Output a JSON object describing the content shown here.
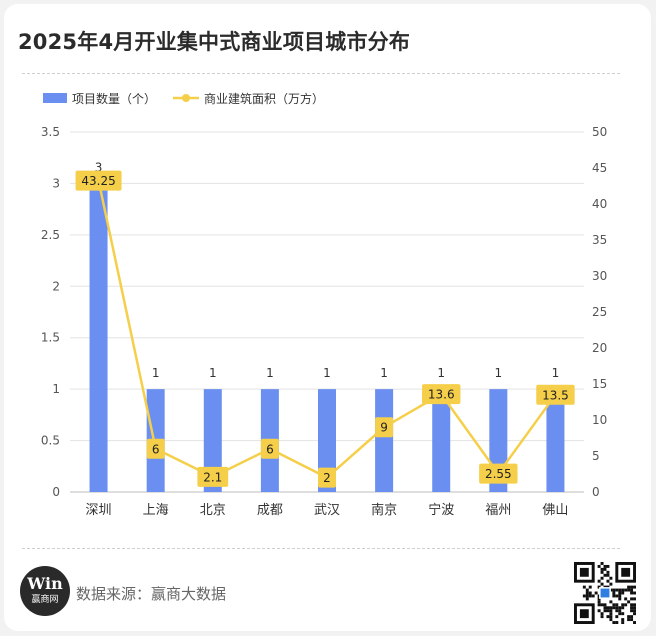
{
  "title": "2025年4月开业集中式商业项目城市分布",
  "source": "数据来源：赢商大数据",
  "logo": {
    "mark": "Win",
    "name": "赢商网"
  },
  "colors": {
    "bar": "#6a8ff0",
    "line": "#f5cf4a",
    "label_bg": "#f5cf4a",
    "grid": "#e3e3e3",
    "axis_text": "#555555"
  },
  "chart_data": {
    "type": "bar",
    "categories": [
      "深圳",
      "上海",
      "北京",
      "成都",
      "武汉",
      "南京",
      "宁波",
      "福州",
      "佛山"
    ],
    "series": [
      {
        "name": "项目数量（个）",
        "type": "bar",
        "axis": "left",
        "values": [
          3,
          1,
          1,
          1,
          1,
          1,
          1,
          1,
          1
        ],
        "labels": [
          "3",
          "1",
          "1",
          "1",
          "1",
          "1",
          "1",
          "1",
          "1"
        ]
      },
      {
        "name": "商业建筑面积（万方）",
        "type": "line",
        "axis": "right",
        "values": [
          43.25,
          6,
          2.1,
          6,
          2,
          9,
          13.6,
          2.55,
          13.5
        ],
        "labels": [
          "43.25",
          "6",
          "2.1",
          "6",
          "2",
          "9",
          "13.6",
          "2.55",
          "13.5"
        ]
      }
    ],
    "y_left": {
      "min": 0,
      "max": 3.5,
      "ticks": [
        "0",
        "0.5",
        "1",
        "1.5",
        "2",
        "2.5",
        "3",
        "3.5"
      ]
    },
    "y_right": {
      "min": 0,
      "max": 50,
      "ticks": [
        "0",
        "5",
        "10",
        "15",
        "20",
        "25",
        "30",
        "35",
        "40",
        "45",
        "50"
      ]
    },
    "grid": true,
    "legend": "top-left"
  }
}
